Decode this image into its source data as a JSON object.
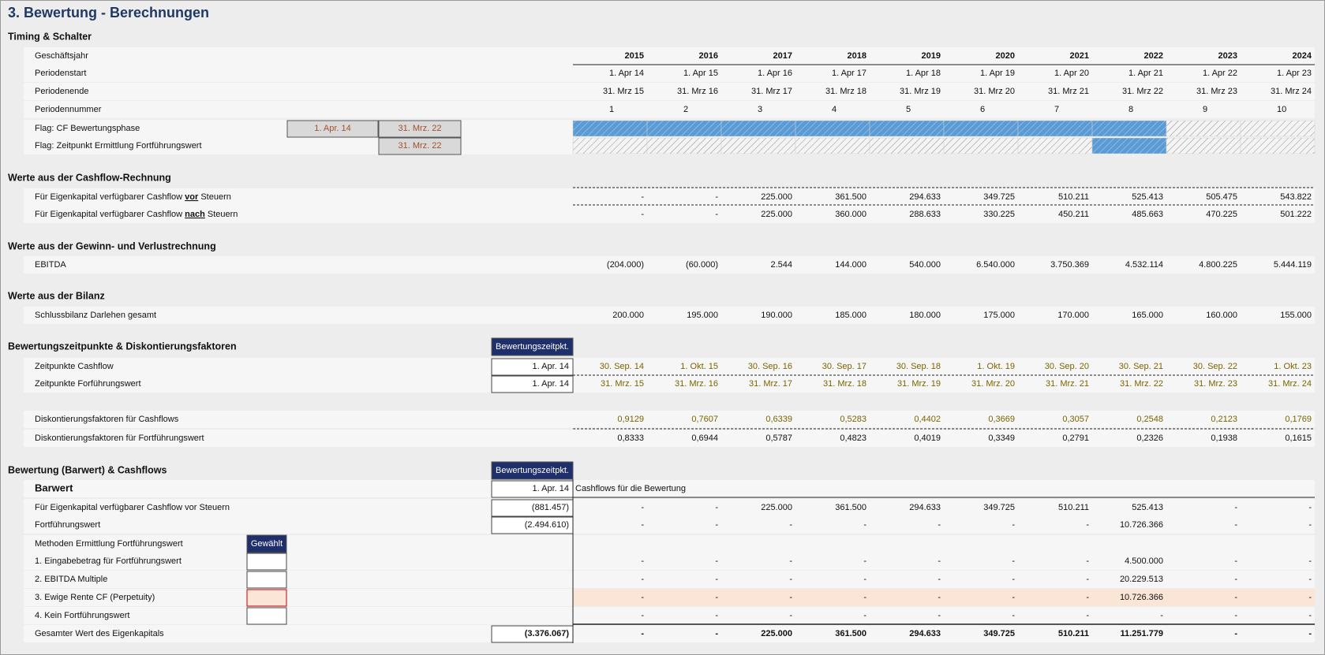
{
  "title": "3. Bewertung - Berechnungen",
  "rows": [
    {
      "kind": "heading",
      "label": "Timing & Schalter"
    },
    {
      "label": "Geschäftsjahr",
      "style": "bold",
      "rule": "solid-bottom",
      "values": [
        "2015",
        "2016",
        "2017",
        "2018",
        "2019",
        "2020",
        "2021",
        "2022",
        "2023",
        "2024"
      ]
    },
    {
      "label": "Periodenstart",
      "values": [
        "1. Apr 14",
        "1. Apr 15",
        "1. Apr 16",
        "1. Apr 17",
        "1. Apr 18",
        "1. Apr 19",
        "1. Apr 20",
        "1. Apr 21",
        "1. Apr 22",
        "1. Apr 23"
      ]
    },
    {
      "label": "Periodenende",
      "values": [
        "31. Mrz 15",
        "31. Mrz 16",
        "31. Mrz 17",
        "31. Mrz 18",
        "31. Mrz 19",
        "31. Mrz 20",
        "31. Mrz 21",
        "31. Mrz 22",
        "31. Mrz 23",
        "31. Mrz 24"
      ]
    },
    {
      "label": "Periodennummer",
      "align": "left",
      "values": [
        "1",
        "2",
        "3",
        "4",
        "5",
        "6",
        "7",
        "8",
        "9",
        "10"
      ]
    },
    {
      "label": "Flag: CF Bewertungsphase",
      "input_start": "1. Apr. 14",
      "input_end": "31. Mrz. 22",
      "flags": [
        true,
        true,
        true,
        true,
        true,
        true,
        true,
        true,
        false,
        false
      ]
    },
    {
      "label": "Flag: Zeitpunkt Ermittlung Fortführungswert",
      "input_end": "31. Mrz. 22",
      "flags": [
        false,
        false,
        false,
        false,
        false,
        false,
        false,
        true,
        false,
        false
      ]
    },
    {
      "kind": "heading",
      "label": "Werte aus der Cashflow-Rechnung"
    },
    {
      "label_parts": [
        "Für Eigenkapital verfügbarer Cashflow ",
        "vor",
        " Steuern"
      ],
      "rule": "dashed-top",
      "values": [
        "-",
        "-",
        "225.000",
        "361.500",
        "294.633",
        "349.725",
        "510.211",
        "525.413",
        "505.475",
        "543.822"
      ]
    },
    {
      "label_parts": [
        "Für Eigenkapital verfügbarer Cashflow ",
        "nach",
        " Steuern"
      ],
      "rule": "dashed-top",
      "values": [
        "-",
        "-",
        "225.000",
        "360.000",
        "288.633",
        "330.225",
        "450.211",
        "485.663",
        "470.225",
        "501.222"
      ]
    },
    {
      "kind": "heading",
      "label": "Werte aus der Gewinn- und Verlustrechnung"
    },
    {
      "label": "EBITDA",
      "values": [
        "(204.000)",
        "(60.000)",
        "2.544",
        "144.000",
        "540.000",
        "6.540.000",
        "3.750.369",
        "4.532.114",
        "4.800.225",
        "5.444.119"
      ]
    },
    {
      "kind": "heading",
      "label": "Werte aus der Bilanz"
    },
    {
      "label": "Schlussbilanz Darlehen gesamt",
      "values": [
        "200.000",
        "195.000",
        "190.000",
        "185.000",
        "180.000",
        "175.000",
        "170.000",
        "165.000",
        "160.000",
        "155.000"
      ]
    },
    {
      "kind": "heading",
      "label": "Bewertungszeitpunkte & Diskontierungsfaktoren",
      "box_header": "Bewertungszeitpkt."
    },
    {
      "label": "Zeitpunkte Cashflow",
      "box": "1. Apr. 14",
      "style": "olive",
      "rule": "dashed-bottom",
      "values": [
        "30. Sep. 14",
        "1. Okt. 15",
        "30. Sep. 16",
        "30. Sep. 17",
        "30. Sep. 18",
        "1. Okt. 19",
        "30. Sep. 20",
        "30. Sep. 21",
        "30. Sep. 22",
        "1. Okt. 23"
      ]
    },
    {
      "label": "Zeitpunkte Forführungswert",
      "box": "1. Apr. 14",
      "style": "olive",
      "values": [
        "31. Mrz. 15",
        "31. Mrz. 16",
        "31. Mrz. 17",
        "31. Mrz. 18",
        "31. Mrz. 19",
        "31. Mrz. 20",
        "31. Mrz. 21",
        "31. Mrz. 22",
        "31. Mrz. 23",
        "31. Mrz. 24"
      ]
    },
    {
      "label": "Diskontierungsfaktoren für Cashflows",
      "style": "olive",
      "values": [
        "0,9129",
        "0,7607",
        "0,6339",
        "0,5283",
        "0,4402",
        "0,3669",
        "0,3057",
        "0,2548",
        "0,2123",
        "0,1769"
      ]
    },
    {
      "label": "Diskontierungsfaktoren für Fortführungswert",
      "rule": "dashed-top",
      "values": [
        "0,8333",
        "0,6944",
        "0,5787",
        "0,4823",
        "0,4019",
        "0,3349",
        "0,2791",
        "0,2326",
        "0,1938",
        "0,1615"
      ]
    },
    {
      "kind": "heading",
      "label": "Bewertung (Barwert) & Cashflows",
      "box_header": "Bewertungszeitpkt."
    },
    {
      "label": "Barwert",
      "style": "title",
      "box": "1. Apr. 14",
      "note": "Cashflows für die Bewertung",
      "rule": "solid-bottom"
    },
    {
      "label": "Für Eigenkapital verfügbarer Cashflow vor Steuern",
      "box": "(881.457)",
      "values": [
        "-",
        "-",
        "225.000",
        "361.500",
        "294.633",
        "349.725",
        "510.211",
        "525.413",
        "-",
        "-"
      ]
    },
    {
      "label": "Fortführungswert",
      "box": "(2.494.610)",
      "values": [
        "-",
        "-",
        "-",
        "-",
        "-",
        "-",
        "-",
        "10.726.366",
        "-",
        "-"
      ]
    },
    {
      "label": "Methoden Ermittlung Fortführungswert",
      "choice_header": "Gewählt"
    },
    {
      "label": "1. Eingabebetrag für Fortführungswert",
      "selected": false,
      "values": [
        "-",
        "-",
        "-",
        "-",
        "-",
        "-",
        "-",
        "4.500.000",
        "-",
        "-"
      ]
    },
    {
      "label": "2. EBITDA Multiple",
      "selected": false,
      "values": [
        "-",
        "-",
        "-",
        "-",
        "-",
        "-",
        "-",
        "20.229.513",
        "-",
        "-"
      ]
    },
    {
      "label": "3. Ewige Rente CF (Perpetuity)",
      "selected": true,
      "values": [
        "-",
        "-",
        "-",
        "-",
        "-",
        "-",
        "-",
        "10.726.366",
        "-",
        "-"
      ]
    },
    {
      "label": "4. Kein Fortführungswert",
      "selected": false,
      "values": [
        "-",
        "-",
        "-",
        "-",
        "-",
        "-",
        "-",
        "-",
        "-",
        "-"
      ]
    },
    {
      "label": "Gesamter Wert des Eigenkapitals",
      "box": "(3.376.067)",
      "style": "total",
      "rule": "solid-top",
      "values": [
        "-",
        "-",
        "225.000",
        "361.500",
        "294.633",
        "349.725",
        "510.211",
        "11.251.779",
        "-",
        "-"
      ]
    }
  ]
}
